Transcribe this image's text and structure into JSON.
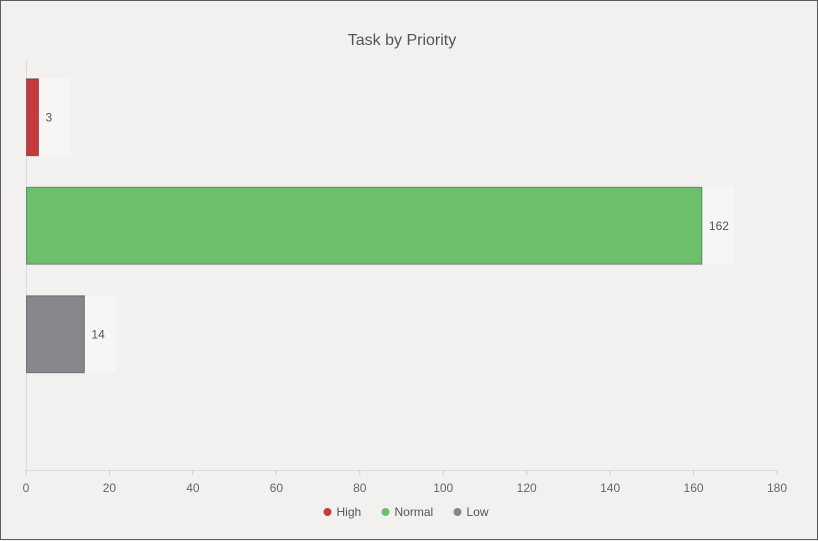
{
  "chart_data": {
    "type": "bar",
    "orientation": "horizontal",
    "title": "Task by Priority",
    "xlabel": "",
    "ylabel": "",
    "categories": [
      "High",
      "Normal",
      "Low"
    ],
    "values": [
      3,
      162,
      14
    ],
    "colors": [
      "#c8393c",
      "#6cc06c",
      "#87878b"
    ],
    "xlim": [
      0,
      180
    ],
    "xticks": [
      0,
      20,
      40,
      60,
      80,
      100,
      120,
      140,
      160,
      180
    ],
    "grid": false,
    "legend": {
      "position": "bottom",
      "items": [
        {
          "label": "High",
          "color": "#c8393c"
        },
        {
          "label": "Normal",
          "color": "#6cc06c"
        },
        {
          "label": "Low",
          "color": "#87878b"
        }
      ]
    }
  }
}
